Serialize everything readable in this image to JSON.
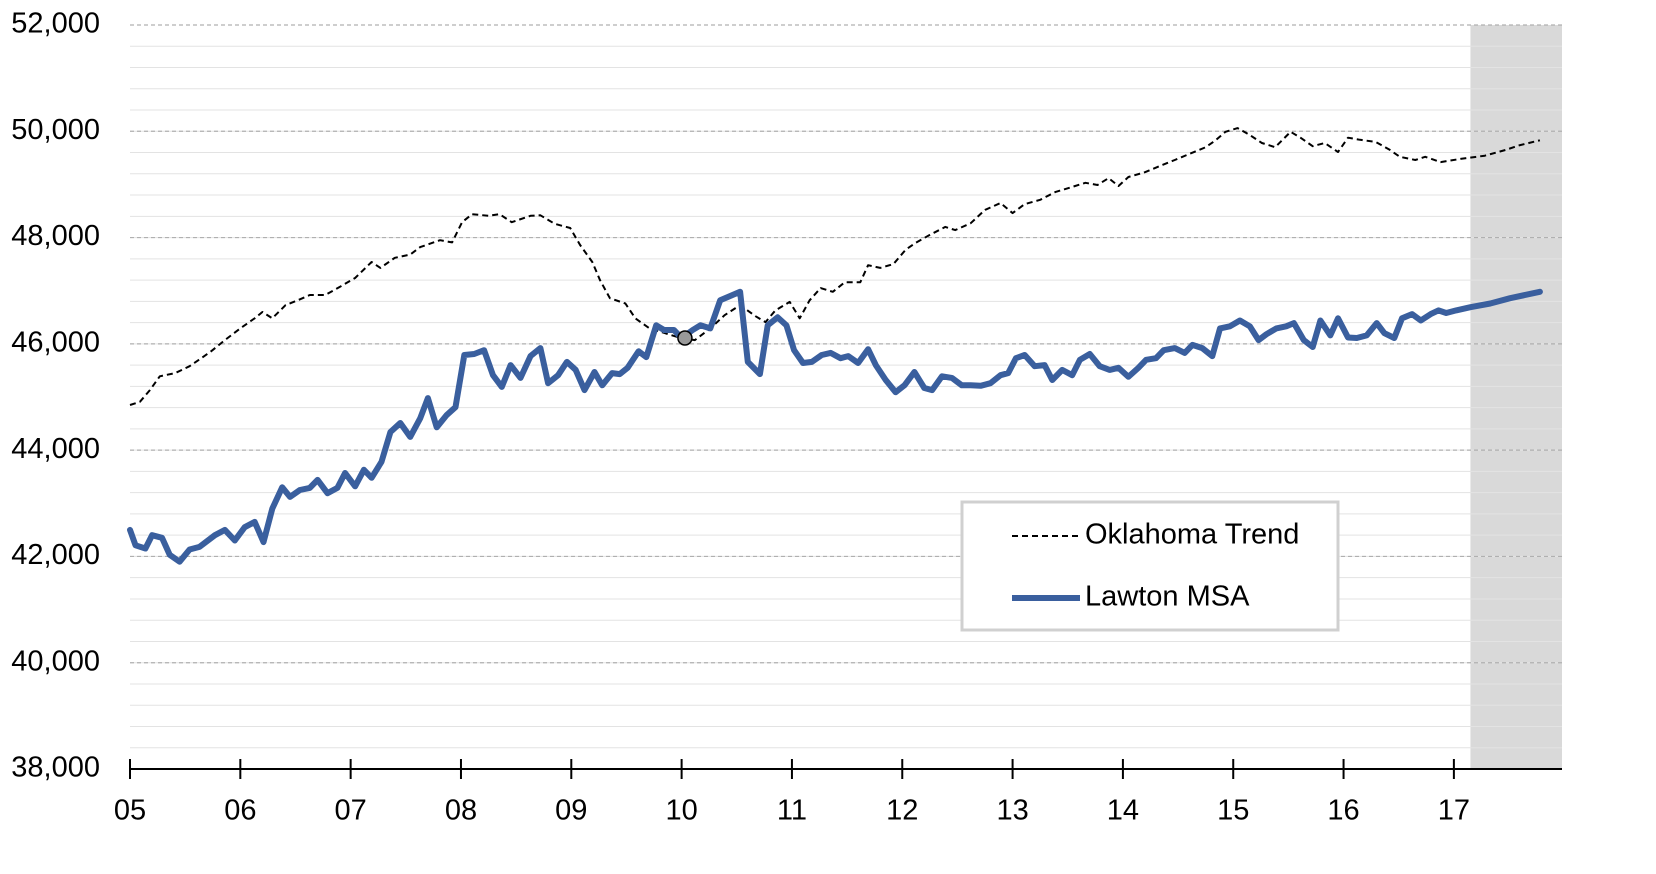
{
  "chart_data": {
    "type": "line",
    "xlim": [
      2005,
      2017.98
    ],
    "xticks": [
      {
        "value": 2005,
        "label": "05"
      },
      {
        "value": 2006,
        "label": "06"
      },
      {
        "value": 2007,
        "label": "07"
      },
      {
        "value": 2008,
        "label": "08"
      },
      {
        "value": 2009,
        "label": "09"
      },
      {
        "value": 2010,
        "label": "10"
      },
      {
        "value": 2011,
        "label": "11"
      },
      {
        "value": 2012,
        "label": "12"
      },
      {
        "value": 2013,
        "label": "13"
      },
      {
        "value": 2014,
        "label": "14"
      },
      {
        "value": 2015,
        "label": "15"
      },
      {
        "value": 2016,
        "label": "16"
      },
      {
        "value": 2017,
        "label": "17"
      }
    ],
    "ylim": [
      38000,
      52000
    ],
    "yticks": [
      {
        "value": 38000,
        "label": "38,000"
      },
      {
        "value": 40000,
        "label": "40,000"
      },
      {
        "value": 42000,
        "label": "42,000"
      },
      {
        "value": 44000,
        "label": "44,000"
      },
      {
        "value": 46000,
        "label": "46,000"
      },
      {
        "value": 48000,
        "label": "48,000"
      },
      {
        "value": 50000,
        "label": "50,000"
      },
      {
        "value": 52000,
        "label": "52,000"
      }
    ],
    "grid": true,
    "minor_grid_step": 400,
    "shaded_xrange": [
      2017.15,
      2017.98
    ],
    "marker": {
      "x": 2010.03,
      "y": 46110,
      "color": "#999999"
    },
    "legend": "lower-right",
    "series": [
      {
        "name": "Oklahoma Trend",
        "color": "#000000",
        "dashed": true,
        "x": [
          2005.0,
          2005.09,
          2005.18,
          2005.27,
          2005.41,
          2005.54,
          2005.73,
          2005.86,
          2006.0,
          2006.13,
          2006.2,
          2006.29,
          2006.41,
          2006.52,
          2006.63,
          2006.77,
          2006.9,
          2007.04,
          2007.19,
          2007.27,
          2007.4,
          2007.54,
          2007.63,
          2007.81,
          2007.92,
          2008.01,
          2008.1,
          2008.25,
          2008.35,
          2008.46,
          2008.63,
          2008.72,
          2008.85,
          2008.99,
          2009.08,
          2009.19,
          2009.26,
          2009.35,
          2009.49,
          2009.58,
          2009.71,
          2009.85,
          2009.99,
          2010.12,
          2010.26,
          2010.39,
          2010.53,
          2010.67,
          2010.76,
          2010.85,
          2010.98,
          2011.07,
          2011.16,
          2011.26,
          2011.37,
          2011.48,
          2011.62,
          2011.69,
          2011.8,
          2011.92,
          2012.03,
          2012.12,
          2012.25,
          2012.39,
          2012.48,
          2012.62,
          2012.75,
          2012.89,
          2013.0,
          2013.11,
          2013.25,
          2013.39,
          2013.52,
          2013.66,
          2013.77,
          2013.87,
          2013.96,
          2014.05,
          2014.2,
          2014.34,
          2014.47,
          2014.61,
          2014.75,
          2014.84,
          2014.93,
          2015.04,
          2015.15,
          2015.26,
          2015.38,
          2015.52,
          2015.61,
          2015.72,
          2015.83,
          2015.95,
          2016.04,
          2016.15,
          2016.29,
          2016.42,
          2016.51,
          2016.65,
          2016.74,
          2016.88,
          2017.06,
          2017.28,
          2017.47,
          2017.6,
          2017.78
        ],
        "values": [
          44850,
          44910,
          45130,
          45390,
          45450,
          45580,
          45850,
          46070,
          46290,
          46480,
          46600,
          46480,
          46730,
          46820,
          46920,
          46920,
          47070,
          47240,
          47540,
          47430,
          47620,
          47680,
          47820,
          47950,
          47910,
          48290,
          48440,
          48410,
          48440,
          48290,
          48410,
          48420,
          48260,
          48180,
          47860,
          47540,
          47200,
          46860,
          46760,
          46480,
          46290,
          46200,
          46110,
          46070,
          46290,
          46540,
          46730,
          46520,
          46410,
          46630,
          46790,
          46480,
          46820,
          47050,
          46980,
          47160,
          47160,
          47480,
          47430,
          47500,
          47770,
          47900,
          48050,
          48200,
          48140,
          48270,
          48520,
          48650,
          48460,
          48630,
          48710,
          48860,
          48940,
          49030,
          48990,
          49120,
          48970,
          49140,
          49230,
          49350,
          49460,
          49580,
          49700,
          49830,
          49990,
          50060,
          49930,
          49780,
          49700,
          49990,
          49880,
          49720,
          49780,
          49610,
          49880,
          49840,
          49800,
          49650,
          49520,
          49460,
          49520,
          49420,
          49480,
          49540,
          49650,
          49740,
          49830
        ]
      },
      {
        "name": "Lawton MSA",
        "color": "#3a5f9e",
        "dashed": false,
        "x": [
          2005.0,
          2005.05,
          2005.14,
          2005.2,
          2005.29,
          2005.36,
          2005.45,
          2005.54,
          2005.63,
          2005.77,
          2005.86,
          2005.95,
          2006.04,
          2006.13,
          2006.21,
          2006.29,
          2006.38,
          2006.45,
          2006.54,
          2006.63,
          2006.7,
          2006.79,
          2006.88,
          2006.95,
          2007.04,
          2007.12,
          2007.19,
          2007.28,
          2007.36,
          2007.45,
          2007.54,
          2007.63,
          2007.7,
          2007.78,
          2007.87,
          2007.95,
          2008.03,
          2008.12,
          2008.21,
          2008.29,
          2008.37,
          2008.45,
          2008.54,
          2008.63,
          2008.72,
          2008.79,
          2008.88,
          2008.96,
          2009.04,
          2009.12,
          2009.21,
          2009.28,
          2009.37,
          2009.44,
          2009.51,
          2009.61,
          2009.68,
          2009.77,
          2009.84,
          2009.93,
          2010.0,
          2010.1,
          2010.17,
          2010.26,
          2010.35,
          2010.44,
          2010.53,
          2010.6,
          2010.71,
          2010.78,
          2010.87,
          2010.95,
          2011.02,
          2011.1,
          2011.18,
          2011.27,
          2011.35,
          2011.44,
          2011.51,
          2011.6,
          2011.69,
          2011.76,
          2011.85,
          2011.94,
          2012.02,
          2012.11,
          2012.2,
          2012.27,
          2012.36,
          2012.45,
          2012.54,
          2012.62,
          2012.71,
          2012.8,
          2012.89,
          2012.96,
          2013.03,
          2013.11,
          2013.2,
          2013.29,
          2013.36,
          2013.45,
          2013.54,
          2013.61,
          2013.7,
          2013.79,
          2013.88,
          2013.96,
          2014.05,
          2014.14,
          2014.21,
          2014.3,
          2014.37,
          2014.47,
          2014.56,
          2014.63,
          2014.72,
          2014.81,
          2014.88,
          2014.97,
          2015.06,
          2015.15,
          2015.23,
          2015.3,
          2015.39,
          2015.48,
          2015.55,
          2015.64,
          2015.72,
          2015.79,
          2015.88,
          2015.95,
          2016.04,
          2016.12,
          2016.21,
          2016.3,
          2016.37,
          2016.46,
          2016.53,
          2016.62,
          2016.7,
          2016.79,
          2016.86,
          2016.93,
          2017.02,
          2017.15,
          2017.33,
          2017.51,
          2017.78
        ],
        "values": [
          42500,
          42210,
          42150,
          42400,
          42350,
          42030,
          41900,
          42130,
          42180,
          42400,
          42500,
          42300,
          42550,
          42650,
          42270,
          42900,
          43300,
          43120,
          43250,
          43290,
          43440,
          43190,
          43290,
          43570,
          43320,
          43630,
          43480,
          43780,
          44340,
          44510,
          44250,
          44600,
          44980,
          44430,
          44660,
          44810,
          45790,
          45810,
          45880,
          45410,
          45190,
          45600,
          45360,
          45770,
          45920,
          45260,
          45410,
          45660,
          45510,
          45130,
          45470,
          45220,
          45450,
          45430,
          45550,
          45860,
          45750,
          46350,
          46260,
          46260,
          46110,
          46260,
          46350,
          46290,
          46820,
          46900,
          46980,
          45660,
          45430,
          46350,
          46500,
          46350,
          45880,
          45640,
          45660,
          45790,
          45830,
          45730,
          45770,
          45640,
          45900,
          45600,
          45320,
          45090,
          45220,
          45470,
          45170,
          45130,
          45390,
          45360,
          45220,
          45220,
          45210,
          45260,
          45410,
          45450,
          45730,
          45790,
          45580,
          45600,
          45320,
          45510,
          45410,
          45700,
          45810,
          45580,
          45510,
          45550,
          45380,
          45550,
          45700,
          45730,
          45880,
          45920,
          45830,
          45980,
          45920,
          45770,
          46290,
          46330,
          46440,
          46330,
          46070,
          46180,
          46290,
          46330,
          46390,
          46070,
          45940,
          46440,
          46160,
          46480,
          46120,
          46110,
          46160,
          46390,
          46200,
          46110,
          46480,
          46560,
          46440,
          46560,
          46630,
          46580,
          46630,
          46690,
          46760,
          46860,
          46980
        ]
      }
    ]
  }
}
